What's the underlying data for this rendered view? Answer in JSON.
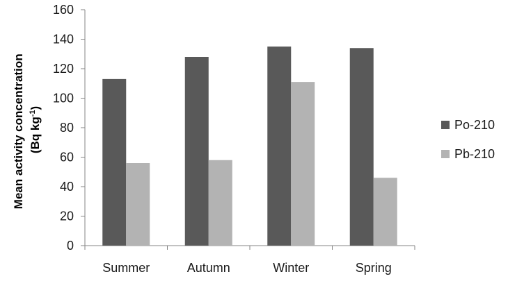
{
  "chart_data": {
    "type": "bar",
    "categories": [
      "Summer",
      "Autumn",
      "Winter",
      "Spring"
    ],
    "series": [
      {
        "name": "Po-210",
        "values": [
          113,
          128,
          135,
          134
        ],
        "color": "#595959"
      },
      {
        "name": "Pb-210",
        "values": [
          56,
          58,
          111,
          46
        ],
        "color": "#b3b3b3"
      }
    ],
    "yticks": [
      0,
      20,
      40,
      60,
      80,
      100,
      120,
      140,
      160
    ],
    "ylim": [
      0,
      160
    ],
    "ylabel_line1": "Mean activity concentration",
    "ylabel_line2_prefix": "(Bq kg",
    "ylabel_line2_sup": "-1",
    "ylabel_line2_suffix": ")",
    "xlabel": "",
    "title": "",
    "grid": false,
    "legend_position": "right"
  }
}
